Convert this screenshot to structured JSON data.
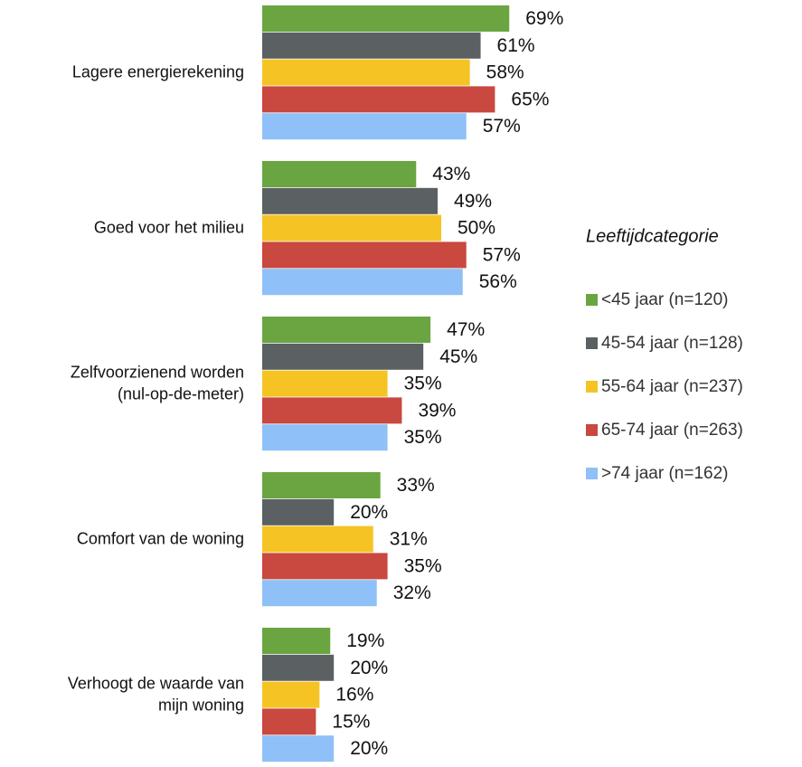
{
  "chart_data": {
    "type": "bar",
    "orientation": "horizontal",
    "categories": [
      [
        "Lagere energierekening"
      ],
      [
        "Goed voor het milieu"
      ],
      [
        "Zelfvoorzienend worden",
        "(nul-op-de-meter)"
      ],
      [
        "Comfort van de woning"
      ],
      [
        "Verhoogt de waarde van",
        "mijn woning"
      ]
    ],
    "legend_title": "Leeftijdcategorie",
    "legend_position": "right",
    "series": [
      {
        "name": "<45 jaar (n=120)",
        "color": "#6aa541",
        "values": [
          69,
          43,
          47,
          33,
          19
        ],
        "value_labels": [
          "69%",
          "43%",
          "47%",
          "33%",
          "19%"
        ]
      },
      {
        "name": "45-54 jaar (n=128)",
        "color": "#5b6162",
        "values": [
          61,
          49,
          45,
          20,
          20
        ],
        "value_labels": [
          "61%",
          "49%",
          "45%",
          "20%",
          "20%"
        ]
      },
      {
        "name": "55-64 jaar (n=237)",
        "color": "#f5c424",
        "values": [
          58,
          50,
          35,
          31,
          16
        ],
        "value_labels": [
          "58%",
          "50%",
          "35%",
          "31%",
          "16%"
        ]
      },
      {
        "name": "65-74 jaar (n=263)",
        "color": "#c9483f",
        "values": [
          65,
          57,
          39,
          35,
          15
        ],
        "value_labels": [
          "65%",
          "57%",
          "39%",
          "35%",
          "15%"
        ]
      },
      {
        "name": ">74 jaar (n=162)",
        "color": "#8fc0f7",
        "values": [
          57,
          56,
          35,
          32,
          20
        ],
        "value_labels": [
          "57%",
          "56%",
          "35%",
          "32%",
          "20%"
        ]
      }
    ]
  }
}
